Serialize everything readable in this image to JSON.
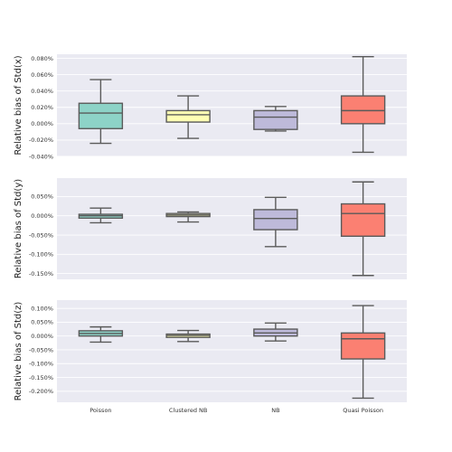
{
  "chart_data": [
    {
      "type": "box",
      "ylabel": "Relative bias of Std(x)",
      "categories": [
        "Poisson",
        "Clustered NB",
        "NB",
        "Quasi Poisson"
      ],
      "ylim": [
        -0.0004,
        0.00085
      ],
      "yticks": [
        -0.0004,
        -0.0002,
        0.0,
        0.0002,
        0.0004,
        0.0006,
        0.0008
      ],
      "ytick_labels": [
        "-0.040%",
        "-0.020%",
        "0.000%",
        "0.020%",
        "0.040%",
        "0.060%",
        "0.080%"
      ],
      "boxes": [
        {
          "category": "Poisson",
          "whisker_low": -0.00024,
          "q1": -6e-05,
          "median": 0.00013,
          "q3": 0.00025,
          "whisker_high": 0.00054,
          "color": "#8dd3c7"
        },
        {
          "category": "Clustered NB",
          "whisker_low": -0.00018,
          "q1": 2e-05,
          "median": 0.00011,
          "q3": 0.00016,
          "whisker_high": 0.00034,
          "color": "#ffffb3"
        },
        {
          "category": "NB",
          "whisker_low": -9e-05,
          "q1": -7e-05,
          "median": 8e-05,
          "q3": 0.00016,
          "whisker_high": 0.00021,
          "color": "#bebada"
        },
        {
          "category": "Quasi Poisson",
          "whisker_low": -0.00035,
          "q1": 0.0,
          "median": 0.00016,
          "q3": 0.00034,
          "whisker_high": 0.00082,
          "color": "#fb8072"
        }
      ],
      "grid": true
    },
    {
      "type": "box",
      "ylabel": "Relative bias of Std(y)",
      "categories": [
        "Poisson",
        "Clustered NB",
        "NB",
        "Quasi Poisson"
      ],
      "ylim": [
        -0.00165,
        0.00098
      ],
      "yticks": [
        -0.0015,
        -0.001,
        -0.0005,
        0.0,
        0.0005
      ],
      "ytick_labels": [
        "-0.150%",
        "-0.100%",
        "-0.050%",
        "0.000%",
        "0.050%"
      ],
      "boxes": [
        {
          "category": "Poisson",
          "whisker_low": -0.00018,
          "q1": -6e-05,
          "median": 0.0,
          "q3": 4e-05,
          "whisker_high": 0.0002,
          "color": "#8dd3c7"
        },
        {
          "category": "Clustered NB",
          "whisker_low": -0.00016,
          "q1": -2e-05,
          "median": 2e-05,
          "q3": 6e-05,
          "whisker_high": 0.0001,
          "color": "#ffffb3"
        },
        {
          "category": "NB",
          "whisker_low": -0.0008,
          "q1": -0.00036,
          "median": -7e-05,
          "q3": 0.00016,
          "whisker_high": 0.00048,
          "color": "#bebada"
        },
        {
          "category": "Quasi Poisson",
          "whisker_low": -0.00155,
          "q1": -0.00053,
          "median": 6e-05,
          "q3": 0.00031,
          "whisker_high": 0.00088,
          "color": "#fb8072"
        }
      ],
      "grid": true
    },
    {
      "type": "box",
      "ylabel": "Relative bias of Std(z)",
      "categories": [
        "Poisson",
        "Clustered NB",
        "NB",
        "Quasi Poisson"
      ],
      "ylim": [
        -0.0024,
        0.0013
      ],
      "yticks": [
        -0.002,
        -0.0015,
        -0.001,
        -0.0005,
        0.0,
        0.0005,
        0.001
      ],
      "ytick_labels": [
        "-0.200%",
        "-0.150%",
        "-0.100%",
        "-0.050%",
        "0.000%",
        "0.050%",
        "0.100%"
      ],
      "boxes": [
        {
          "category": "Poisson",
          "whisker_low": -0.00022,
          "q1": 0.0,
          "median": 9e-05,
          "q3": 0.00019,
          "whisker_high": 0.00033,
          "color": "#8dd3c7"
        },
        {
          "category": "Clustered NB",
          "whisker_low": -0.0002,
          "q1": -5e-05,
          "median": 2e-05,
          "q3": 7e-05,
          "whisker_high": 0.0002,
          "color": "#ffffb3"
        },
        {
          "category": "NB",
          "whisker_low": -0.00018,
          "q1": 0.0,
          "median": 0.00011,
          "q3": 0.00025,
          "whisker_high": 0.00047,
          "color": "#bebada"
        },
        {
          "category": "Quasi Poisson",
          "whisker_low": -0.00225,
          "q1": -0.00083,
          "median": -0.0001,
          "q3": 0.00011,
          "whisker_high": 0.0011,
          "color": "#fb8072"
        }
      ],
      "grid": true
    }
  ]
}
